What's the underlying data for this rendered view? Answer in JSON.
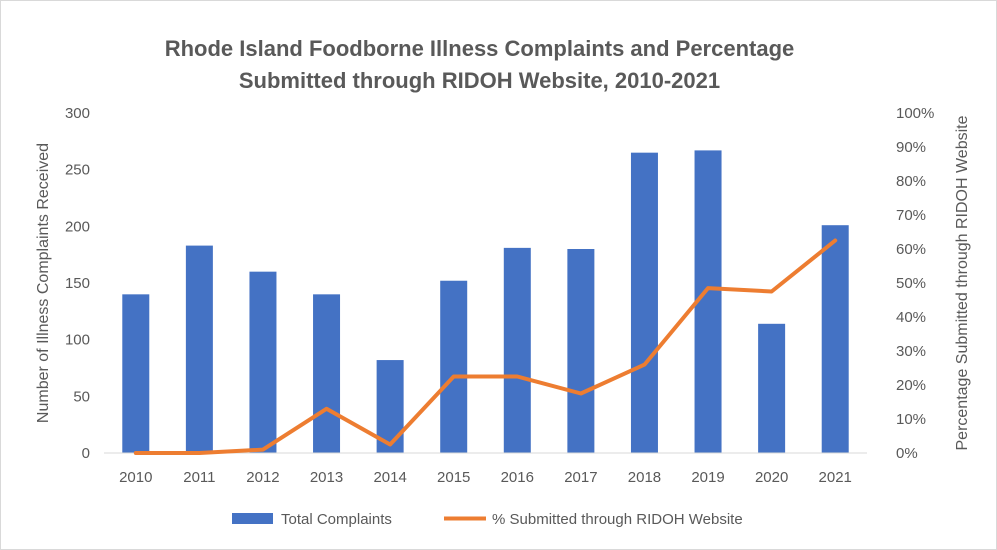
{
  "chart_data": {
    "type": "bar",
    "title_lines": [
      "Rhode Island Foodborne Illness Complaints and Percentage",
      "Submitted through RIDOH Website, 2010-2021"
    ],
    "categories": [
      "2010",
      "2011",
      "2012",
      "2013",
      "2014",
      "2015",
      "2016",
      "2017",
      "2018",
      "2019",
      "2020",
      "2021"
    ],
    "series": [
      {
        "name": "Total Complaints",
        "type": "bar",
        "axis": "left",
        "color": "#4472c4",
        "values": [
          140,
          183,
          160,
          140,
          82,
          152,
          181,
          180,
          265,
          267,
          114,
          201
        ]
      },
      {
        "name": "% Submitted through RIDOH Website",
        "type": "line",
        "axis": "right",
        "color": "#ed7d31",
        "values": [
          0,
          0,
          1,
          13,
          2.5,
          22.5,
          22.5,
          17.5,
          26,
          48.5,
          47.5,
          62.5
        ]
      }
    ],
    "y_left": {
      "label": "Number of Illness Complaints Received",
      "ylim": [
        0,
        300
      ],
      "ticks": [
        "0",
        "50",
        "100",
        "150",
        "200",
        "250",
        "300"
      ]
    },
    "y_right": {
      "label": "Percentage Submitted through RIDOH Website",
      "ylim": [
        0,
        100
      ],
      "ticks": [
        "0%",
        "10%",
        "20%",
        "30%",
        "40%",
        "50%",
        "60%",
        "70%",
        "80%",
        "90%",
        "100%"
      ]
    },
    "grid": false,
    "legend_position": "bottom"
  }
}
